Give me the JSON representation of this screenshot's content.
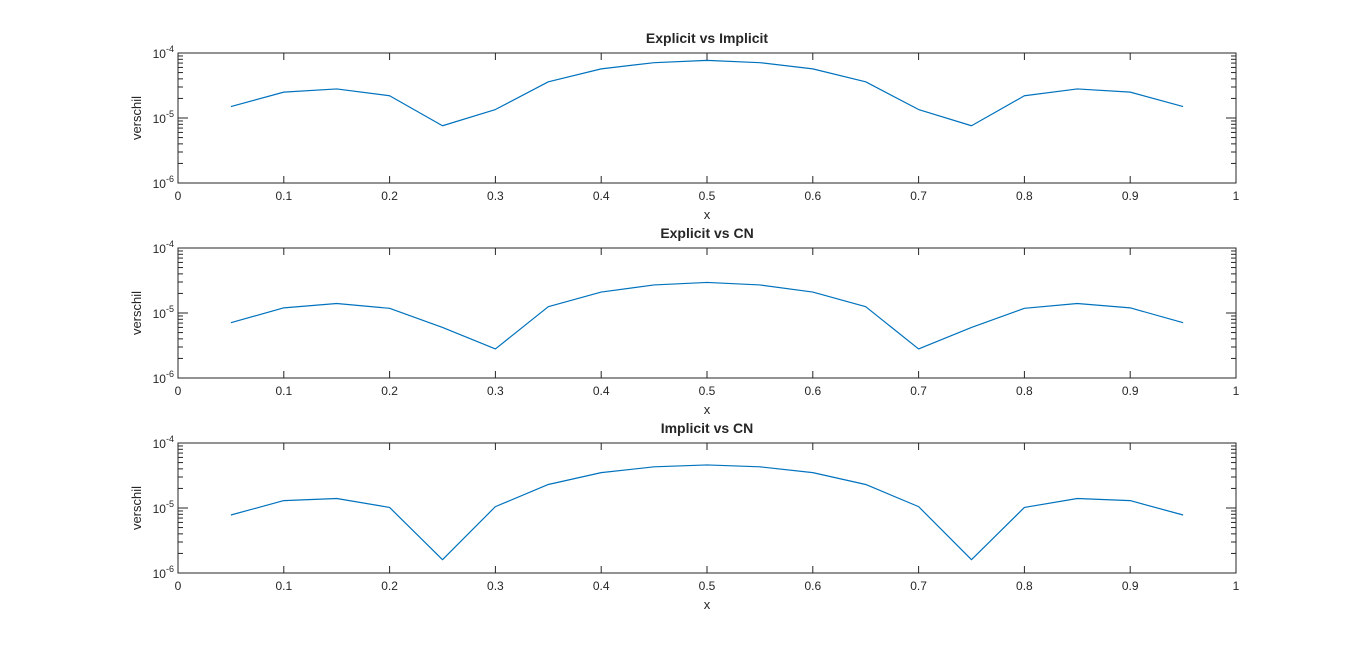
{
  "chart_data": [
    {
      "type": "line",
      "title": "Explicit vs Implicit",
      "xlabel": "x",
      "ylabel": "verschil",
      "xlim": [
        0,
        1
      ],
      "ylim": [
        1e-06,
        0.0001
      ],
      "yscale": "log",
      "grid": false,
      "xticks": [
        0,
        0.1,
        0.2,
        0.3,
        0.4,
        0.5,
        0.6,
        0.7,
        0.8,
        0.9,
        1
      ],
      "xtick_labels": [
        "0",
        "0.1",
        "0.2",
        "0.3",
        "0.4",
        "0.5",
        "0.6",
        "0.7",
        "0.8",
        "0.9",
        "1"
      ],
      "yticks": [
        1e-06,
        1e-05,
        0.0001
      ],
      "ytick_labels": [
        {
          "base": "10",
          "exp": "-6"
        },
        {
          "base": "10",
          "exp": "-5"
        },
        {
          "base": "10",
          "exp": "-4"
        }
      ],
      "color": "#0072BD",
      "x": [
        0.05,
        0.1,
        0.15,
        0.2,
        0.25,
        0.3,
        0.35,
        0.4,
        0.45,
        0.5,
        0.55,
        0.6,
        0.65,
        0.7,
        0.75,
        0.8,
        0.85,
        0.9,
        0.95
      ],
      "y": [
        1.5e-05,
        2.5e-05,
        2.8e-05,
        2.2e-05,
        7.6e-06,
        1.35e-05,
        3.6e-05,
        5.7e-05,
        7.1e-05,
        7.7e-05,
        7.1e-05,
        5.7e-05,
        3.6e-05,
        1.35e-05,
        7.6e-06,
        2.2e-05,
        2.8e-05,
        2.5e-05,
        1.5e-05
      ]
    },
    {
      "type": "line",
      "title": "Explicit vs CN",
      "xlabel": "x",
      "ylabel": "verschil",
      "xlim": [
        0,
        1
      ],
      "ylim": [
        1e-06,
        0.0001
      ],
      "yscale": "log",
      "grid": false,
      "xticks": [
        0,
        0.1,
        0.2,
        0.3,
        0.4,
        0.5,
        0.6,
        0.7,
        0.8,
        0.9,
        1
      ],
      "xtick_labels": [
        "0",
        "0.1",
        "0.2",
        "0.3",
        "0.4",
        "0.5",
        "0.6",
        "0.7",
        "0.8",
        "0.9",
        "1"
      ],
      "yticks": [
        1e-06,
        1e-05,
        0.0001
      ],
      "ytick_labels": [
        {
          "base": "10",
          "exp": "-6"
        },
        {
          "base": "10",
          "exp": "-5"
        },
        {
          "base": "10",
          "exp": "-4"
        }
      ],
      "color": "#0072BD",
      "x": [
        0.05,
        0.1,
        0.15,
        0.2,
        0.25,
        0.3,
        0.35,
        0.4,
        0.45,
        0.5,
        0.55,
        0.6,
        0.65,
        0.7,
        0.75,
        0.8,
        0.85,
        0.9,
        0.95
      ],
      "y": [
        7.1e-06,
        1.2e-05,
        1.4e-05,
        1.18e-05,
        6e-06,
        2.8e-06,
        1.25e-05,
        2.1e-05,
        2.7e-05,
        2.95e-05,
        2.7e-05,
        2.1e-05,
        1.25e-05,
        2.8e-06,
        6e-06,
        1.18e-05,
        1.4e-05,
        1.2e-05,
        7.1e-06
      ]
    },
    {
      "type": "line",
      "title": "Implicit vs CN",
      "xlabel": "x",
      "ylabel": "verschil",
      "xlim": [
        0,
        1
      ],
      "ylim": [
        1e-06,
        0.0001
      ],
      "yscale": "log",
      "grid": false,
      "xticks": [
        0,
        0.1,
        0.2,
        0.3,
        0.4,
        0.5,
        0.6,
        0.7,
        0.8,
        0.9,
        1
      ],
      "xtick_labels": [
        "0",
        "0.1",
        "0.2",
        "0.3",
        "0.4",
        "0.5",
        "0.6",
        "0.7",
        "0.8",
        "0.9",
        "1"
      ],
      "yticks": [
        1e-06,
        1e-05,
        0.0001
      ],
      "ytick_labels": [
        {
          "base": "10",
          "exp": "-6"
        },
        {
          "base": "10",
          "exp": "-5"
        },
        {
          "base": "10",
          "exp": "-4"
        }
      ],
      "color": "#0072BD",
      "x": [
        0.05,
        0.1,
        0.15,
        0.2,
        0.25,
        0.3,
        0.35,
        0.4,
        0.45,
        0.5,
        0.55,
        0.6,
        0.65,
        0.7,
        0.75,
        0.8,
        0.85,
        0.9,
        0.95
      ],
      "y": [
        7.8e-06,
        1.3e-05,
        1.4e-05,
        1.02e-05,
        1.6e-06,
        1.05e-05,
        2.3e-05,
        3.5e-05,
        4.3e-05,
        4.6e-05,
        4.3e-05,
        3.5e-05,
        2.3e-05,
        1.05e-05,
        1.6e-06,
        1.02e-05,
        1.4e-05,
        1.3e-05,
        7.8e-06
      ]
    }
  ]
}
